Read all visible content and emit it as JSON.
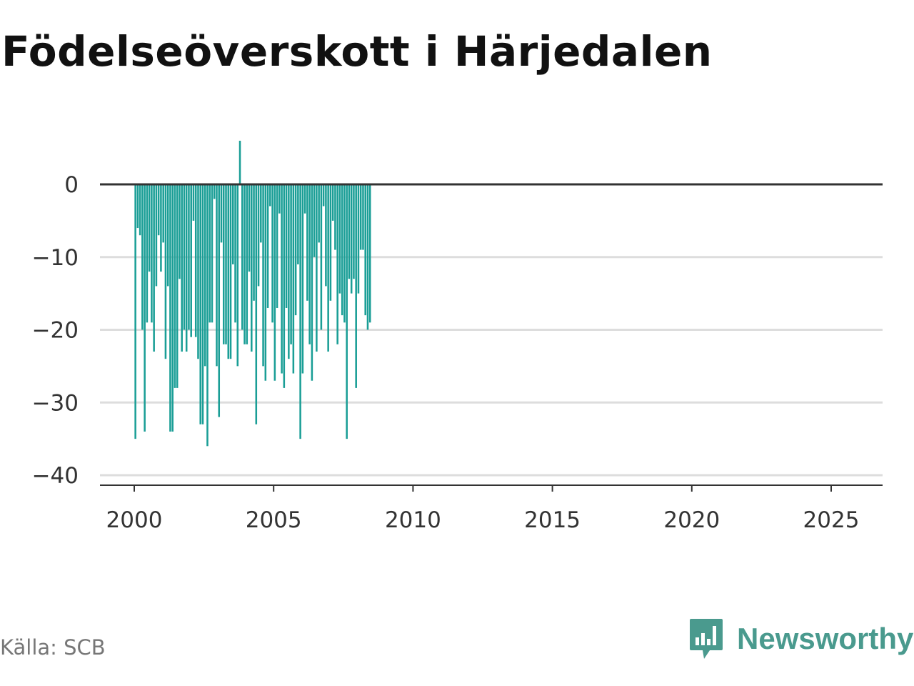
{
  "title": "Födelseöverskott i Härjedalen",
  "source": "Källa: SCB",
  "brand": {
    "name": "Newsworthy",
    "icon": "newsworthy-logo-icon",
    "color": "#4a9a8e"
  },
  "colors": {
    "bar": "#1a9e96",
    "zero_line": "#333333",
    "grid": "#dddddd",
    "axis": "#333333"
  },
  "chart_data": {
    "type": "bar",
    "title": "Födelseöverskott i Härjedalen",
    "xlabel": "",
    "ylabel": "",
    "x_start": "2000-01",
    "x_interval": "month",
    "xlim": [
      2000,
      2026.3
    ],
    "ylim": [
      -40,
      6
    ],
    "x_ticks": [
      2000,
      2005,
      2010,
      2015,
      2020,
      2025
    ],
    "y_ticks": [
      0,
      -10,
      -20,
      -30,
      -40
    ],
    "x_tick_labels": [
      "2000",
      "2005",
      "2010",
      "2015",
      "2020",
      "2025"
    ],
    "y_tick_labels": [
      "0",
      "−10",
      "−20",
      "−30",
      "−40"
    ],
    "grid": true,
    "legend": "none",
    "values": [
      -35,
      -6,
      -7,
      -20,
      -34,
      -19,
      -12,
      -19,
      -23,
      -14,
      -7,
      -12,
      -8,
      -24,
      -14,
      -34,
      -34,
      -28,
      -28,
      -13,
      -23,
      -20,
      -23,
      -20,
      -21,
      -5,
      -21,
      -24,
      -33,
      -33,
      -25,
      -36,
      -19,
      -19,
      -2,
      -25,
      -32,
      -8,
      -22,
      -22,
      -24,
      -24,
      -11,
      -19,
      -25,
      6,
      -20,
      -22,
      -22,
      -12,
      -23,
      -16,
      -33,
      -14,
      -8,
      -25,
      -27,
      -17,
      -3,
      -19,
      -27,
      -17,
      -4,
      -26,
      -28,
      -17,
      -24,
      -22,
      -26,
      -18,
      -11,
      -35,
      -26,
      -4,
      -16,
      -22,
      -27,
      -10,
      -23,
      -8,
      -20,
      -3,
      -14,
      -23,
      -16,
      -5,
      -9,
      -22,
      -15,
      -18,
      -19,
      -35,
      -13,
      -15,
      -13,
      -28,
      -15,
      -9,
      -9,
      -18,
      -20,
      -19
    ]
  }
}
